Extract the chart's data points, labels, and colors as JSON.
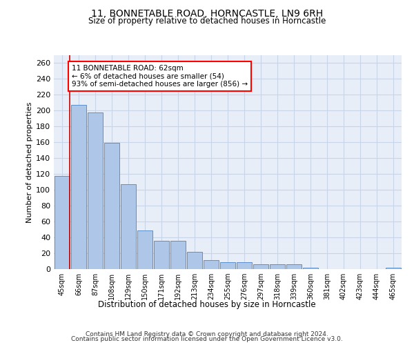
{
  "title": "11, BONNETABLE ROAD, HORNCASTLE, LN9 6RH",
  "subtitle": "Size of property relative to detached houses in Horncastle",
  "xlabel": "Distribution of detached houses by size in Horncastle",
  "ylabel": "Number of detached properties",
  "bar_color": "#aec6e8",
  "bar_edge_color": "#5b8fc9",
  "grid_color": "#c8d4e8",
  "background_color": "#e8eef8",
  "vline_color": "#cc0000",
  "annotation_lines": [
    "11 BONNETABLE ROAD: 62sqm",
    "← 6% of detached houses are smaller (54)",
    "93% of semi-detached houses are larger (856) →"
  ],
  "categories": [
    "45sqm",
    "66sqm",
    "87sqm",
    "108sqm",
    "129sqm",
    "150sqm",
    "171sqm",
    "192sqm",
    "213sqm",
    "234sqm",
    "255sqm",
    "276sqm",
    "297sqm",
    "318sqm",
    "339sqm",
    "360sqm",
    "381sqm",
    "402sqm",
    "423sqm",
    "444sqm",
    "465sqm"
  ],
  "values": [
    118,
    207,
    198,
    159,
    107,
    49,
    36,
    36,
    22,
    11,
    9,
    9,
    6,
    6,
    6,
    2,
    0,
    0,
    0,
    0,
    2
  ],
  "ylim": [
    0,
    270
  ],
  "yticks": [
    0,
    20,
    40,
    60,
    80,
    100,
    120,
    140,
    160,
    180,
    200,
    220,
    240,
    260
  ],
  "footer_line1": "Contains HM Land Registry data © Crown copyright and database right 2024.",
  "footer_line2": "Contains public sector information licensed under the Open Government Licence v3.0."
}
